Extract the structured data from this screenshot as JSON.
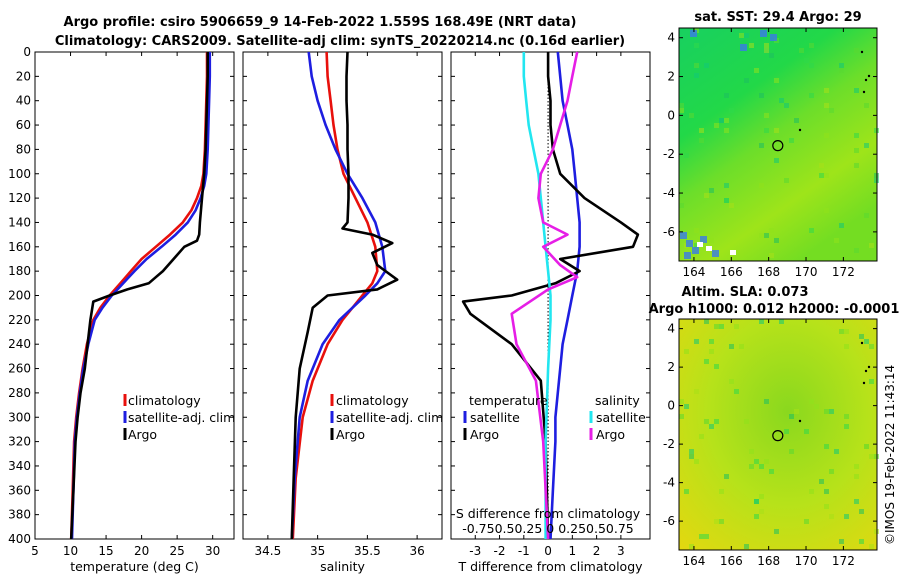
{
  "header": {
    "title_line1": "Argo profile: csiro 5906659_9 14-Feb-2022 1.559S 168.49E (NRT data)",
    "title_line2": "Climatology: CARS2009. Satellite-adj clim: synTS_20220214.nc (0.16d earlier)"
  },
  "stamp": "©IMOS 19-Feb-2022 11:43:14",
  "colors": {
    "climatology": "#e8100c",
    "satellite": "#1e1ee0",
    "argo": "#000000",
    "sat_salinity": "#22e6f0",
    "argo_salinity": "#e61ee6"
  },
  "chart_data": [
    {
      "type": "line",
      "name": "temperature-profile",
      "xlabel": "temperature (deg C)",
      "ylabel": "",
      "xlim": [
        5,
        33
      ],
      "ylim": [
        400,
        0
      ],
      "xticks": [
        "5",
        "10",
        "15",
        "20",
        "25",
        "30"
      ],
      "yticks": [
        "0",
        "20",
        "40",
        "60",
        "80",
        "100",
        "120",
        "140",
        "160",
        "180",
        "200",
        "220",
        "240",
        "260",
        "280",
        "300",
        "320",
        "340",
        "360",
        "380",
        "400"
      ],
      "legend": [
        "climatology",
        "satellite-adj. clim",
        "Argo"
      ],
      "legend_position": "lower-right",
      "series": [
        {
          "name": "climatology",
          "color": "#e8100c",
          "x": [
            29.2,
            29.2,
            29.1,
            29.0,
            28.9,
            28.7,
            28.4,
            27.8,
            27.0,
            25.8,
            24.0,
            22.0,
            20.0,
            18.5,
            17.0,
            15.5,
            14.2,
            13.2,
            12.3,
            11.7,
            11.2,
            10.8,
            10.5,
            10.3,
            10.1
          ],
          "y": [
            0,
            20,
            40,
            60,
            80,
            100,
            110,
            120,
            130,
            140,
            150,
            160,
            170,
            180,
            190,
            200,
            210,
            220,
            240,
            260,
            280,
            300,
            320,
            360,
            400
          ]
        },
        {
          "name": "satellite-adj. clim",
          "color": "#1e1ee0",
          "x": [
            29.6,
            29.6,
            29.5,
            29.4,
            29.3,
            29.1,
            28.8,
            28.3,
            27.6,
            26.5,
            24.8,
            22.8,
            20.7,
            19.0,
            17.4,
            15.8,
            14.5,
            13.4,
            12.5,
            11.8,
            11.3,
            10.9,
            10.6,
            10.4,
            10.2
          ],
          "y": [
            0,
            20,
            40,
            60,
            80,
            100,
            110,
            120,
            130,
            140,
            150,
            160,
            170,
            180,
            190,
            200,
            210,
            220,
            240,
            260,
            280,
            300,
            320,
            360,
            400
          ]
        },
        {
          "name": "Argo",
          "color": "#000000",
          "x": [
            29.3,
            29.3,
            29.2,
            29.1,
            29.0,
            28.8,
            28.5,
            28.2,
            28.1,
            27.8,
            26.0,
            24.5,
            23.0,
            22.0,
            21.0,
            18.0,
            15.5,
            13.2,
            12.8,
            12.4,
            12.0,
            11.4,
            11.0,
            10.7,
            10.4,
            10.1
          ],
          "y": [
            0,
            20,
            40,
            60,
            80,
            100,
            120,
            140,
            150,
            155,
            160,
            170,
            180,
            185,
            190,
            195,
            200,
            205,
            220,
            240,
            260,
            280,
            300,
            320,
            360,
            400
          ]
        }
      ]
    },
    {
      "type": "line",
      "name": "salinity-profile",
      "xlabel": "salinity",
      "ylabel": "",
      "xlim": [
        34.25,
        36.25
      ],
      "ylim": [
        400,
        0
      ],
      "xticks": [
        "34.5",
        "35",
        "35.5",
        "36"
      ],
      "legend": [
        "climatology",
        "satellite-adj. clim",
        "Argo"
      ],
      "legend_position": "lower-right",
      "series": [
        {
          "name": "climatology",
          "color": "#e8100c",
          "x": [
            35.09,
            35.1,
            35.13,
            35.16,
            35.2,
            35.26,
            35.38,
            35.5,
            35.58,
            35.6,
            35.55,
            35.45,
            35.35,
            35.25,
            35.1,
            34.95,
            34.85,
            34.78,
            34.75
          ],
          "y": [
            0,
            20,
            40,
            60,
            80,
            100,
            120,
            140,
            160,
            180,
            190,
            200,
            210,
            220,
            240,
            270,
            300,
            350,
            400
          ]
        },
        {
          "name": "satellite-adj. clim",
          "color": "#1e1ee0",
          "x": [
            34.91,
            34.94,
            35.0,
            35.08,
            35.18,
            35.3,
            35.45,
            35.58,
            35.65,
            35.68,
            35.6,
            35.48,
            35.35,
            35.22,
            35.05,
            34.9,
            34.82,
            34.77,
            34.74
          ],
          "y": [
            0,
            20,
            40,
            60,
            80,
            100,
            120,
            140,
            160,
            180,
            190,
            200,
            210,
            220,
            240,
            270,
            300,
            350,
            400
          ]
        },
        {
          "name": "Argo",
          "color": "#000000",
          "x": [
            35.3,
            35.29,
            35.29,
            35.3,
            35.3,
            35.31,
            35.31,
            35.3,
            35.25,
            35.55,
            35.75,
            35.55,
            35.6,
            35.8,
            35.6,
            35.1,
            34.95,
            34.9,
            34.82,
            34.78,
            34.76,
            34.74
          ],
          "y": [
            0,
            20,
            40,
            60,
            80,
            100,
            120,
            140,
            145,
            150,
            157,
            165,
            175,
            187,
            195,
            200,
            210,
            230,
            260,
            300,
            350,
            400
          ]
        }
      ]
    },
    {
      "type": "line",
      "name": "difference-profile",
      "xlabel": "T difference from climatology",
      "ylabel": "",
      "xlim": [
        -4,
        4.2
      ],
      "ylim": [
        400,
        0
      ],
      "xticks": [
        "-3",
        "-2",
        "-1",
        "0",
        "1",
        "2",
        "3"
      ],
      "top_axis_label": "S difference from climatology",
      "top_ticks": "-0.750.50.25 0  0.250.50.75",
      "legend": [
        "temperature",
        "satellite",
        "Argo",
        "salinity",
        "satellite",
        "Argo"
      ],
      "legend_position": "lower",
      "series": [
        {
          "name": "temperature satellite",
          "color": "#1e1ee0",
          "x": [
            0.4,
            0.5,
            0.6,
            0.8,
            1.0,
            1.1,
            1.2,
            1.3,
            1.3,
            1.2,
            1.0,
            0.8,
            0.6,
            0.5,
            0.4,
            0.3,
            0.3,
            0.2,
            0.1
          ],
          "y": [
            0,
            20,
            40,
            60,
            80,
            100,
            120,
            140,
            160,
            180,
            200,
            220,
            240,
            260,
            280,
            300,
            320,
            360,
            400
          ]
        },
        {
          "name": "temperature Argo",
          "color": "#000000",
          "x": [
            0.0,
            0.0,
            0.1,
            0.1,
            0.2,
            0.5,
            1.5,
            3.0,
            3.7,
            3.5,
            0.5,
            1.3,
            0.3,
            -1.5,
            -3.5,
            -3.2,
            -1.5,
            -0.3,
            -0.1,
            0.0
          ],
          "y": [
            0,
            20,
            40,
            60,
            80,
            100,
            120,
            140,
            150,
            160,
            170,
            180,
            190,
            200,
            205,
            215,
            240,
            270,
            320,
            400
          ]
        },
        {
          "name": "salinity satellite",
          "color": "#22e6f0",
          "x": [
            -1.0,
            -1.0,
            -0.9,
            -0.8,
            -0.6,
            -0.4,
            -0.3,
            -0.2,
            -0.1,
            0.0,
            0.1,
            0.1,
            0.0,
            -0.1,
            -0.1
          ],
          "y": [
            0,
            20,
            40,
            60,
            80,
            100,
            120,
            140,
            160,
            180,
            200,
            220,
            260,
            320,
            400
          ]
        },
        {
          "name": "salinity Argo",
          "color": "#e61ee6",
          "x": [
            1.2,
            1.0,
            0.8,
            0.5,
            0.2,
            -0.3,
            -0.4,
            -0.2,
            0.8,
            -0.2,
            0.5,
            1.2,
            0.0,
            -1.5,
            -1.3,
            -0.5,
            -0.2,
            0.0
          ],
          "y": [
            0,
            20,
            40,
            60,
            80,
            100,
            120,
            140,
            150,
            160,
            175,
            185,
            195,
            215,
            240,
            270,
            320,
            400
          ]
        }
      ]
    },
    {
      "type": "heatmap",
      "name": "sst-map",
      "title": "sat. SST: 29.4 Argo: 29",
      "xlim": [
        163.2,
        173.8
      ],
      "ylim": [
        -7.5,
        4.5
      ],
      "xticks": [
        "164",
        "166",
        "168",
        "170",
        "172"
      ],
      "yticks": [
        "4",
        "2",
        "0",
        "-2",
        "-4",
        "-6"
      ],
      "marker": {
        "lon": 168.49,
        "lat": -1.559
      }
    },
    {
      "type": "heatmap",
      "name": "sla-map",
      "title": "Altim. SLA: 0.073",
      "subtitle": "Argo h1000: 0.012 h2000: -0.0001",
      "xlim": [
        163.2,
        173.8
      ],
      "ylim": [
        -7.5,
        4.5
      ],
      "xticks": [
        "164",
        "166",
        "168",
        "170",
        "172"
      ],
      "yticks": [
        "4",
        "2",
        "0",
        "-2",
        "-4",
        "-6"
      ],
      "marker": {
        "lon": 168.49,
        "lat": -1.559
      }
    }
  ]
}
